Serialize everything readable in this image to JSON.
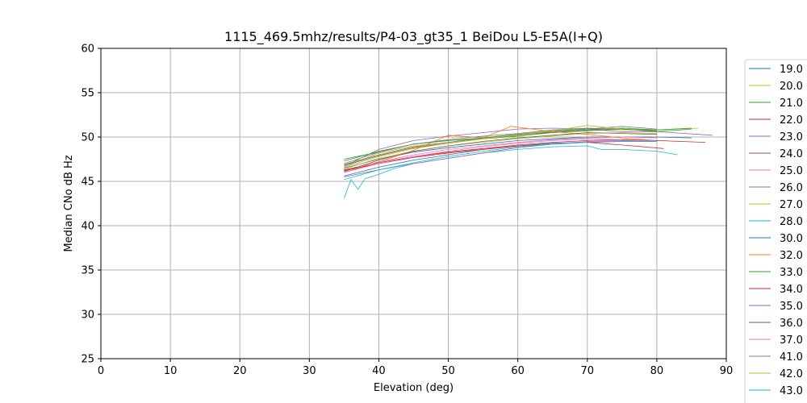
{
  "chart_data": {
    "type": "line",
    "title": "1115_469.5mhz/results/P4-03_gt35_1 BeiDou L5-E5A(I+Q)",
    "xlabel": "Elevation (deg)",
    "ylabel": "Median CNo dB Hz",
    "xlim": [
      0,
      90
    ],
    "ylim": [
      25,
      60
    ],
    "xticks": [
      "0",
      "10",
      "20",
      "30",
      "40",
      "50",
      "60",
      "70",
      "80",
      "90"
    ],
    "yticks": [
      "25",
      "30",
      "35",
      "40",
      "45",
      "50",
      "55",
      "60"
    ],
    "grid": true,
    "legend_position": "right (outside plot, clipped at bottom)",
    "colors": [
      "#1f77b4",
      "#bcbd22",
      "#2ca02c",
      "#d62728",
      "#9467bd",
      "#8c564b",
      "#e377c2",
      "#7f7f7f",
      "#bcbd22",
      "#17becf",
      "#1f77b4",
      "#ff7f0e",
      "#2ca02c",
      "#d62728",
      "#9467bd",
      "#8c564b",
      "#e377c2",
      "#7f7f7f",
      "#bcbd22",
      "#17becf"
    ],
    "series": [
      {
        "name": "19.0",
        "x": [
          35,
          40,
          45,
          50,
          55,
          60,
          65,
          70,
          75,
          80,
          85
        ],
        "y": [
          46.5,
          47.5,
          48.3,
          48.8,
          49.2,
          49.6,
          49.8,
          50.0,
          50.0,
          50.0,
          49.9
        ]
      },
      {
        "name": "20.0",
        "x": [
          35,
          40,
          45,
          50,
          55,
          60,
          65,
          70,
          75,
          80,
          86
        ],
        "y": [
          46.6,
          48.2,
          49.0,
          49.4,
          49.9,
          50.2,
          50.6,
          51.0,
          50.8,
          50.8,
          51.0
        ]
      },
      {
        "name": "21.0",
        "x": [
          35,
          40,
          45,
          50,
          55,
          60,
          65,
          70,
          75,
          80,
          85
        ],
        "y": [
          47.5,
          48.3,
          49.2,
          49.6,
          49.8,
          50.1,
          50.5,
          50.8,
          51.0,
          50.8,
          51.0
        ]
      },
      {
        "name": "22.0",
        "x": [
          35,
          40,
          45,
          50,
          55,
          60,
          65,
          70,
          75,
          80,
          87
        ],
        "y": [
          46.3,
          47.1,
          47.8,
          48.3,
          48.7,
          49.1,
          49.4,
          49.6,
          49.7,
          49.6,
          49.4
        ]
      },
      {
        "name": "23.0",
        "x": [
          35,
          40,
          45,
          50,
          55,
          60,
          65,
          70,
          75,
          80,
          88
        ],
        "y": [
          46.7,
          48.6,
          49.6,
          50.1,
          50.5,
          50.9,
          51.0,
          50.9,
          50.6,
          50.6,
          50.2
        ]
      },
      {
        "name": "24.0",
        "x": [
          35,
          40,
          45,
          50,
          55,
          60,
          65,
          70,
          75,
          80
        ],
        "y": [
          46.8,
          47.9,
          48.8,
          49.3,
          49.8,
          50.2,
          50.6,
          50.9,
          50.9,
          50.7
        ]
      },
      {
        "name": "25.0",
        "x": [
          35,
          40,
          45,
          50,
          55,
          60,
          65,
          70,
          75,
          80
        ],
        "y": [
          46.2,
          47.2,
          48.0,
          48.6,
          49.0,
          49.4,
          49.7,
          49.9,
          50.0,
          49.9
        ]
      },
      {
        "name": "26.0",
        "x": [
          35,
          40,
          45,
          50,
          55,
          60,
          65,
          70,
          75,
          80
        ],
        "y": [
          46.9,
          48.0,
          48.9,
          49.4,
          49.9,
          50.3,
          50.7,
          50.9,
          51.2,
          50.9
        ]
      },
      {
        "name": "27.0",
        "x": [
          35,
          40,
          45,
          50,
          55,
          60,
          65,
          70,
          75,
          80
        ],
        "y": [
          46.4,
          47.6,
          48.4,
          49.0,
          49.4,
          49.8,
          50.1,
          50.4,
          50.5,
          50.4
        ]
      },
      {
        "name": "28.0",
        "x": [
          35,
          36,
          37,
          38,
          40,
          42,
          45,
          50,
          55,
          60,
          65,
          70,
          72,
          75,
          80,
          83
        ],
        "y": [
          43.1,
          45.2,
          44.1,
          45.3,
          45.8,
          46.4,
          47.0,
          47.6,
          48.2,
          48.6,
          48.9,
          49.0,
          48.6,
          48.6,
          48.4,
          48.0
        ]
      },
      {
        "name": "30.0",
        "x": [
          35,
          40,
          45,
          50,
          55,
          60,
          65,
          70,
          75,
          80
        ],
        "y": [
          45.6,
          46.6,
          47.4,
          48.0,
          48.6,
          49.0,
          49.3,
          49.4,
          49.5,
          49.5
        ]
      },
      {
        "name": "32.0",
        "x": [
          35,
          40,
          45,
          50,
          55,
          59,
          65,
          70,
          75,
          80
        ],
        "y": [
          46.0,
          47.2,
          48.5,
          50.2,
          49.9,
          51.2,
          50.6,
          50.3,
          49.9,
          49.6
        ]
      },
      {
        "name": "33.0",
        "x": [
          35,
          40,
          45,
          50,
          55,
          60,
          65,
          70,
          75,
          80,
          85
        ],
        "y": [
          47.3,
          48.4,
          49.2,
          49.6,
          49.9,
          50.3,
          50.5,
          50.7,
          50.9,
          50.6,
          50.9
        ]
      },
      {
        "name": "34.0",
        "x": [
          35,
          40,
          45,
          50,
          55,
          60,
          65,
          70,
          75,
          81
        ],
        "y": [
          46.2,
          47.0,
          47.7,
          48.2,
          48.6,
          49.0,
          49.2,
          49.4,
          49.1,
          48.7
        ]
      },
      {
        "name": "35.0",
        "x": [
          35,
          40,
          45,
          50,
          55,
          60,
          65,
          70,
          75,
          80
        ],
        "y": [
          45.5,
          46.3,
          47.0,
          47.6,
          48.2,
          48.8,
          49.2,
          49.5,
          49.6,
          49.6
        ]
      },
      {
        "name": "36.0",
        "x": [
          35,
          40,
          45,
          50,
          55,
          60,
          65,
          70,
          75,
          80
        ],
        "y": [
          46.1,
          47.4,
          48.4,
          49.0,
          49.5,
          49.9,
          50.2,
          50.5,
          50.4,
          50.3
        ]
      },
      {
        "name": "37.0",
        "x": [
          35,
          40,
          45,
          50,
          55,
          60,
          65,
          70,
          75
        ],
        "y": [
          46.0,
          47.0,
          47.8,
          48.4,
          48.9,
          49.3,
          49.6,
          49.8,
          49.7
        ]
      },
      {
        "name": "41.0",
        "x": [
          35,
          40,
          45,
          50,
          55,
          60,
          65,
          70,
          75
        ],
        "y": [
          47.0,
          48.3,
          49.2,
          49.7,
          50.1,
          50.4,
          50.8,
          51.0,
          50.9
        ]
      },
      {
        "name": "42.0",
        "x": [
          35,
          40,
          45,
          50,
          55,
          60,
          65,
          70,
          75
        ],
        "y": [
          46.6,
          47.8,
          48.7,
          49.3,
          49.8,
          50.2,
          50.7,
          51.3,
          50.9
        ]
      },
      {
        "name": "43.0",
        "x": [
          35,
          40,
          45,
          50,
          55,
          60,
          65,
          70
        ],
        "y": [
          45.2,
          46.3,
          47.1,
          47.8,
          48.4,
          48.9,
          49.2,
          49.4
        ]
      }
    ]
  }
}
